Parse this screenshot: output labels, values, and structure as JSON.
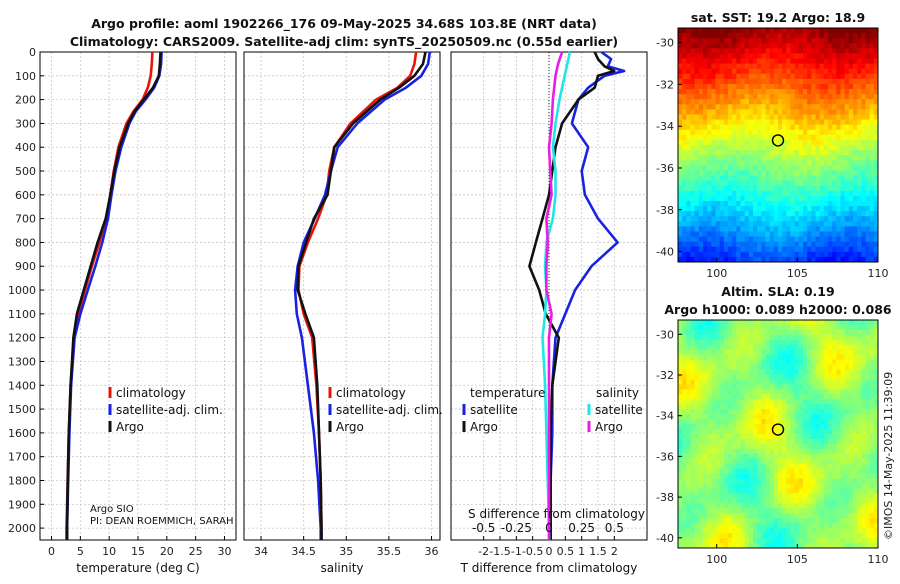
{
  "header": {
    "title_line1": "Argo profile: aoml 1902266_176 09-May-2025 34.68S 103.8E (NRT data)",
    "title_line2": "Climatology: CARS2009. Satellite-adj clim: synTS_20250509.nc (0.55d earlier)"
  },
  "credit": {
    "institution": "Argo SIO",
    "pi": "PI: DEAN ROEMMICH, SARAH",
    "stamp": "©IMOS 14-May-2025 11:39:09"
  },
  "maps": {
    "sst_title": "sat. SST: 19.2 Argo: 18.9",
    "sla_title1": "Altim. SLA: 0.19",
    "sla_title2": "Argo h1000: 0.089 h2000: 0.086",
    "lat_ticks": [
      "-30",
      "-32",
      "-34",
      "-36",
      "-38",
      "-40"
    ],
    "lon_ticks": [
      "100",
      "105",
      "110"
    ],
    "float_lon": 103.8,
    "float_lat": -34.68
  },
  "legend": {
    "climatology": "climatology",
    "satellite_adj": "satellite-adj. clim.",
    "argo": "Argo",
    "temperature": "temperature",
    "salinity": "salinity",
    "satellite": "satellite"
  },
  "colors": {
    "climatology": "#e8140a",
    "satellite_adj": "#1a22e0",
    "argo": "#111111",
    "temp_sat_diff": "#1a22e0",
    "sal_sat_diff": "#22e6e6",
    "sal_argo_diff": "#e61ee6"
  },
  "chart_data": [
    {
      "type": "line",
      "title": "",
      "xlabel": "temperature (deg C)",
      "ylabel": "",
      "xlim": [
        -2,
        32
      ],
      "ylim": [
        2050,
        0
      ],
      "x_ticks": [
        "0",
        "5",
        "10",
        "15",
        "20",
        "25",
        "30"
      ],
      "y_ticks": [
        "0",
        "100",
        "200",
        "300",
        "400",
        "500",
        "600",
        "700",
        "800",
        "900",
        "1000",
        "1100",
        "1200",
        "1300",
        "1400",
        "1500",
        "1600",
        "1700",
        "1800",
        "1900",
        "2000"
      ],
      "series": [
        {
          "name": "climatology",
          "depth": [
            0,
            50,
            100,
            150,
            200,
            250,
            300,
            400,
            500,
            600,
            700,
            800,
            900,
            1000,
            1100,
            1200,
            1400,
            1600,
            1800,
            2000,
            2050
          ],
          "values": [
            17.5,
            17.4,
            17.2,
            16.7,
            15.8,
            14.2,
            13.0,
            11.6,
            10.8,
            10.2,
            9.6,
            8.3,
            7.0,
            5.8,
            4.6,
            3.9,
            3.3,
            3.0,
            2.8,
            2.6,
            2.6
          ]
        },
        {
          "name": "satellite-adj. clim.",
          "depth": [
            0,
            50,
            100,
            150,
            200,
            250,
            300,
            400,
            500,
            600,
            700,
            800,
            900,
            1000,
            1100,
            1200,
            1400,
            1600,
            1800,
            2000,
            2050
          ],
          "values": [
            19.1,
            19.0,
            18.7,
            17.8,
            16.3,
            14.6,
            13.5,
            12.1,
            11.1,
            10.4,
            9.8,
            8.8,
            7.6,
            6.3,
            5.0,
            4.0,
            3.4,
            3.1,
            2.9,
            2.7,
            2.7
          ]
        },
        {
          "name": "Argo",
          "depth": [
            0,
            50,
            100,
            150,
            200,
            250,
            300,
            400,
            500,
            600,
            700,
            800,
            900,
            1000,
            1100,
            1200,
            1400,
            1600,
            1800,
            2000,
            2050
          ],
          "values": [
            18.9,
            18.8,
            18.6,
            17.6,
            16.0,
            14.4,
            13.3,
            11.8,
            10.9,
            10.2,
            9.4,
            8.0,
            6.8,
            5.6,
            4.4,
            3.8,
            3.3,
            3.0,
            2.8,
            2.7,
            2.7
          ]
        }
      ]
    },
    {
      "type": "line",
      "title": "",
      "xlabel": "salinity",
      "ylabel": "",
      "xlim": [
        33.8,
        36.1
      ],
      "ylim": [
        2050,
        0
      ],
      "x_ticks": [
        "34",
        "34.5",
        "35",
        "35.5",
        "36"
      ],
      "series": [
        {
          "name": "climatology",
          "depth": [
            0,
            50,
            100,
            150,
            200,
            300,
            400,
            500,
            600,
            700,
            800,
            900,
            1000,
            1100,
            1200,
            1400,
            1600,
            1800,
            2000,
            2050
          ],
          "values": [
            35.82,
            35.8,
            35.75,
            35.6,
            35.35,
            35.05,
            34.86,
            34.8,
            34.77,
            34.67,
            34.55,
            34.45,
            34.44,
            34.5,
            34.6,
            34.65,
            34.68,
            34.7,
            34.71,
            34.71
          ]
        },
        {
          "name": "satellite-adj. clim.",
          "depth": [
            0,
            50,
            100,
            150,
            200,
            300,
            400,
            500,
            600,
            700,
            800,
            900,
            1000,
            1100,
            1200,
            1400,
            1600,
            1800,
            2000,
            2050
          ],
          "values": [
            35.98,
            35.96,
            35.88,
            35.7,
            35.45,
            35.13,
            34.9,
            34.82,
            34.75,
            34.63,
            34.5,
            34.43,
            34.4,
            34.42,
            34.48,
            34.55,
            34.62,
            34.67,
            34.7,
            34.7
          ]
        },
        {
          "name": "Argo",
          "depth": [
            0,
            50,
            100,
            150,
            200,
            300,
            400,
            500,
            600,
            700,
            800,
            900,
            1000,
            1100,
            1200,
            1400,
            1600,
            1800,
            2000,
            2050
          ],
          "values": [
            35.93,
            35.9,
            35.8,
            35.62,
            35.4,
            35.08,
            34.86,
            34.82,
            34.78,
            34.62,
            34.53,
            34.44,
            34.43,
            34.52,
            34.62,
            34.66,
            34.68,
            34.7,
            34.71,
            34.71
          ]
        }
      ]
    },
    {
      "type": "line",
      "title": "",
      "xlabel": "T difference from climatology",
      "xlabel_top": "S difference from climatology",
      "ylabel": "",
      "xlim": [
        -3,
        3
      ],
      "xlim_sal": [
        -0.75,
        0.75
      ],
      "ylim": [
        2050,
        0
      ],
      "x_ticks": [
        "-2",
        "-1.5",
        "-1",
        "-0.5",
        "0",
        "0.5",
        "1",
        "1.5",
        "2"
      ],
      "x_ticks_sal": [
        "-0.5",
        "-0.25",
        "0",
        "0.25",
        "0.5"
      ],
      "legend_title_temperature": "temperature",
      "legend_title_salinity": "salinity",
      "series": [
        {
          "name": "temperature satellite",
          "depth": [
            0,
            30,
            60,
            80,
            100,
            150,
            200,
            300,
            400,
            500,
            600,
            700,
            800,
            900,
            1000,
            1100,
            1200,
            1400,
            1600,
            1800,
            2000,
            2050
          ],
          "values": [
            1.6,
            1.9,
            1.8,
            2.3,
            1.7,
            1.2,
            0.9,
            0.7,
            1.2,
            1.0,
            1.1,
            1.5,
            2.1,
            1.3,
            0.8,
            0.5,
            0.2,
            0.1,
            0.1,
            0.05,
            0.05,
            0.05
          ]
        },
        {
          "name": "temperature Argo",
          "depth": [
            0,
            30,
            60,
            80,
            100,
            150,
            200,
            300,
            400,
            500,
            600,
            700,
            800,
            900,
            1000,
            1100,
            1200,
            1400,
            1600,
            1800,
            2000,
            2050
          ],
          "values": [
            1.4,
            1.5,
            1.7,
            2.0,
            1.5,
            1.4,
            0.9,
            0.4,
            0.2,
            0.1,
            0.0,
            -0.2,
            -0.4,
            -0.6,
            -0.3,
            -0.1,
            0.3,
            0.1,
            0.05,
            0.05,
            0.05,
            0.05
          ]
        },
        {
          "name": "salinity satellite",
          "depth": [
            0,
            50,
            100,
            200,
            300,
            400,
            500,
            600,
            700,
            800,
            900,
            1000,
            1100,
            1200,
            1400,
            1600,
            1800,
            2000,
            2050
          ],
          "values": [
            0.16,
            0.14,
            0.12,
            0.08,
            0.05,
            0.03,
            0.05,
            0.05,
            0.03,
            -0.02,
            -0.03,
            -0.02,
            -0.03,
            -0.05,
            -0.03,
            -0.02,
            -0.01,
            0.0,
            0.0
          ]
        },
        {
          "name": "salinity Argo",
          "depth": [
            0,
            50,
            100,
            200,
            300,
            400,
            500,
            600,
            700,
            800,
            900,
            1000,
            1100,
            1200,
            1400,
            1600,
            1800,
            2000,
            2050
          ],
          "values": [
            0.1,
            0.07,
            0.05,
            0.03,
            0.02,
            0.0,
            0.01,
            0.02,
            -0.02,
            -0.01,
            -0.02,
            -0.02,
            0.02,
            0.0,
            0.0,
            0.0,
            0.0,
            0.0,
            0.0
          ]
        }
      ]
    }
  ]
}
